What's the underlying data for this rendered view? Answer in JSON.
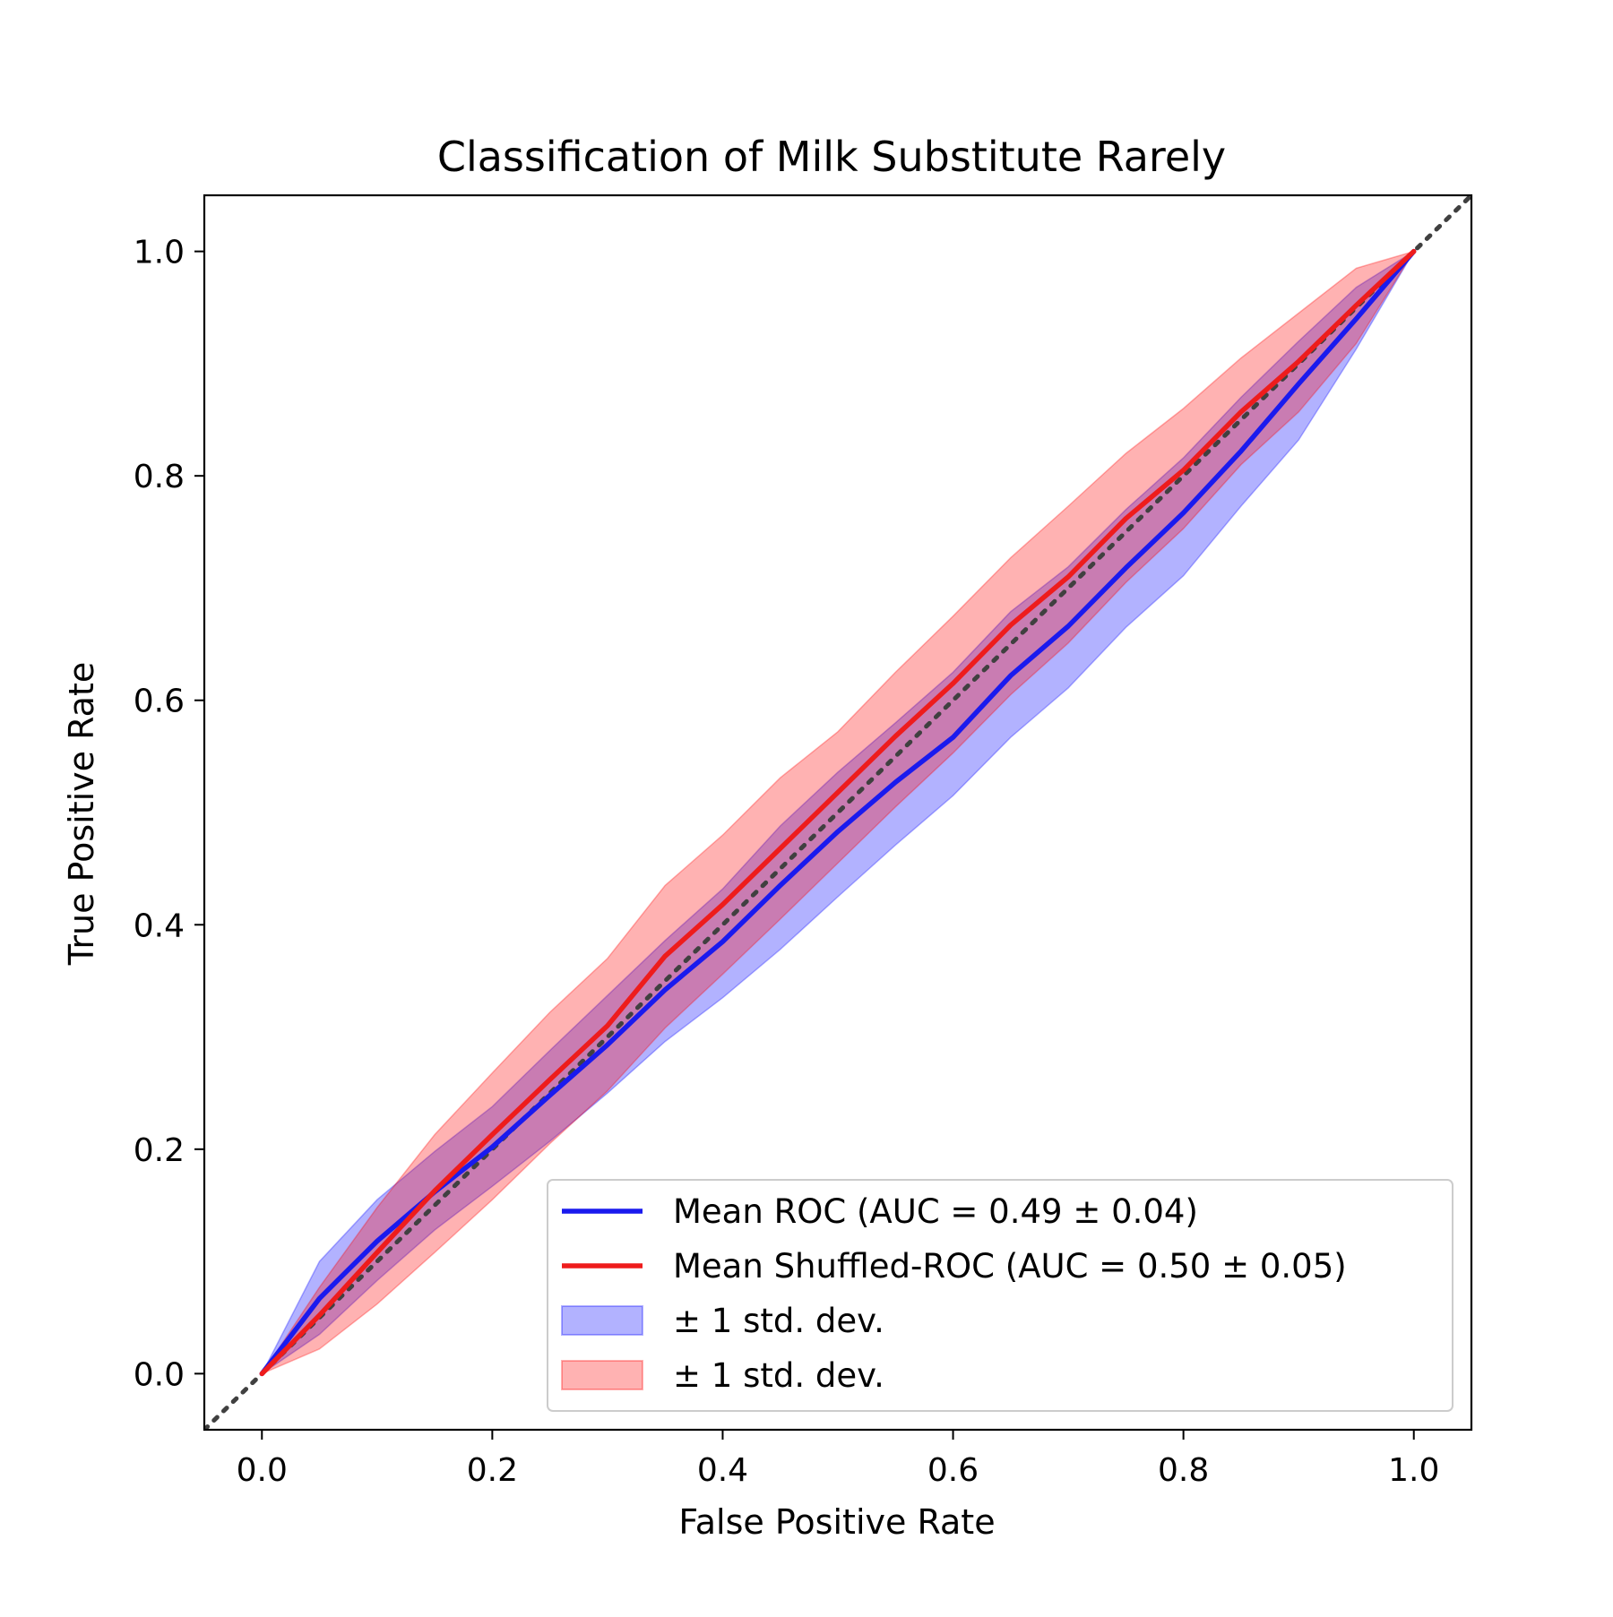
{
  "chart_data": {
    "type": "line",
    "title": "Classification of Milk Substitute Rarely",
    "xlabel": "False Positive Rate",
    "ylabel": "True Positive Rate",
    "xlim": [
      -0.05,
      1.05
    ],
    "ylim": [
      -0.05,
      1.05
    ],
    "xticks": [
      "0.0",
      "0.2",
      "0.4",
      "0.6",
      "0.8",
      "1.0"
    ],
    "yticks": [
      "0.0",
      "0.2",
      "0.4",
      "0.6",
      "0.8",
      "1.0"
    ],
    "grid": false,
    "legend_position": "lower-right",
    "x": [
      0.0,
      0.05,
      0.1,
      0.15,
      0.2,
      0.25,
      0.3,
      0.35,
      0.4,
      0.45,
      0.5,
      0.55,
      0.6,
      0.65,
      0.7,
      0.75,
      0.8,
      0.85,
      0.9,
      0.95,
      1.0
    ],
    "series": [
      {
        "name": "Mean ROC (AUC = 0.49 ± 0.04)",
        "color": "#1a1aee",
        "values": [
          0.0,
          0.067,
          0.118,
          0.162,
          0.202,
          0.248,
          0.293,
          0.342,
          0.385,
          0.435,
          0.483,
          0.527,
          0.567,
          0.622,
          0.666,
          0.718,
          0.767,
          0.822,
          0.882,
          0.94,
          1.0
        ],
        "lower": [
          0.0,
          0.035,
          0.083,
          0.128,
          0.167,
          0.207,
          0.25,
          0.296,
          0.335,
          0.378,
          0.425,
          0.471,
          0.515,
          0.567,
          0.611,
          0.665,
          0.711,
          0.773,
          0.832,
          0.913,
          1.0
        ],
        "upper": [
          0.0,
          0.1,
          0.155,
          0.198,
          0.238,
          0.288,
          0.337,
          0.386,
          0.432,
          0.488,
          0.536,
          0.58,
          0.625,
          0.679,
          0.719,
          0.77,
          0.816,
          0.87,
          0.92,
          0.968,
          1.0
        ]
      },
      {
        "name": "Mean Shuffled-ROC (AUC = 0.50 ± 0.05)",
        "color": "#ee1c1c",
        "values": [
          0.0,
          0.052,
          0.108,
          0.163,
          0.213,
          0.262,
          0.31,
          0.372,
          0.418,
          0.468,
          0.518,
          0.568,
          0.615,
          0.667,
          0.71,
          0.762,
          0.805,
          0.857,
          0.902,
          0.952,
          1.0
        ],
        "lower": [
          0.0,
          0.022,
          0.062,
          0.108,
          0.155,
          0.205,
          0.252,
          0.308,
          0.356,
          0.405,
          0.455,
          0.505,
          0.553,
          0.605,
          0.651,
          0.705,
          0.753,
          0.81,
          0.857,
          0.918,
          1.0
        ],
        "upper": [
          0.0,
          0.077,
          0.148,
          0.213,
          0.268,
          0.322,
          0.37,
          0.435,
          0.48,
          0.531,
          0.572,
          0.625,
          0.675,
          0.727,
          0.773,
          0.82,
          0.86,
          0.905,
          0.945,
          0.985,
          1.0
        ]
      }
    ],
    "legend": [
      {
        "label": "Mean ROC (AUC = 0.49 ± 0.04)",
        "kind": "line",
        "color": "#1a1aee"
      },
      {
        "label": "Mean Shuffled-ROC (AUC = 0.50 ± 0.05)",
        "kind": "line",
        "color": "#ee1c1c"
      },
      {
        "label": "± 1 std. dev.",
        "kind": "patch",
        "color": "#0000ff"
      },
      {
        "label": "± 1 std. dev.",
        "kind": "patch",
        "color": "#ff0000"
      }
    ],
    "chance_line": {
      "color": "#404040",
      "style": "dotted"
    }
  }
}
